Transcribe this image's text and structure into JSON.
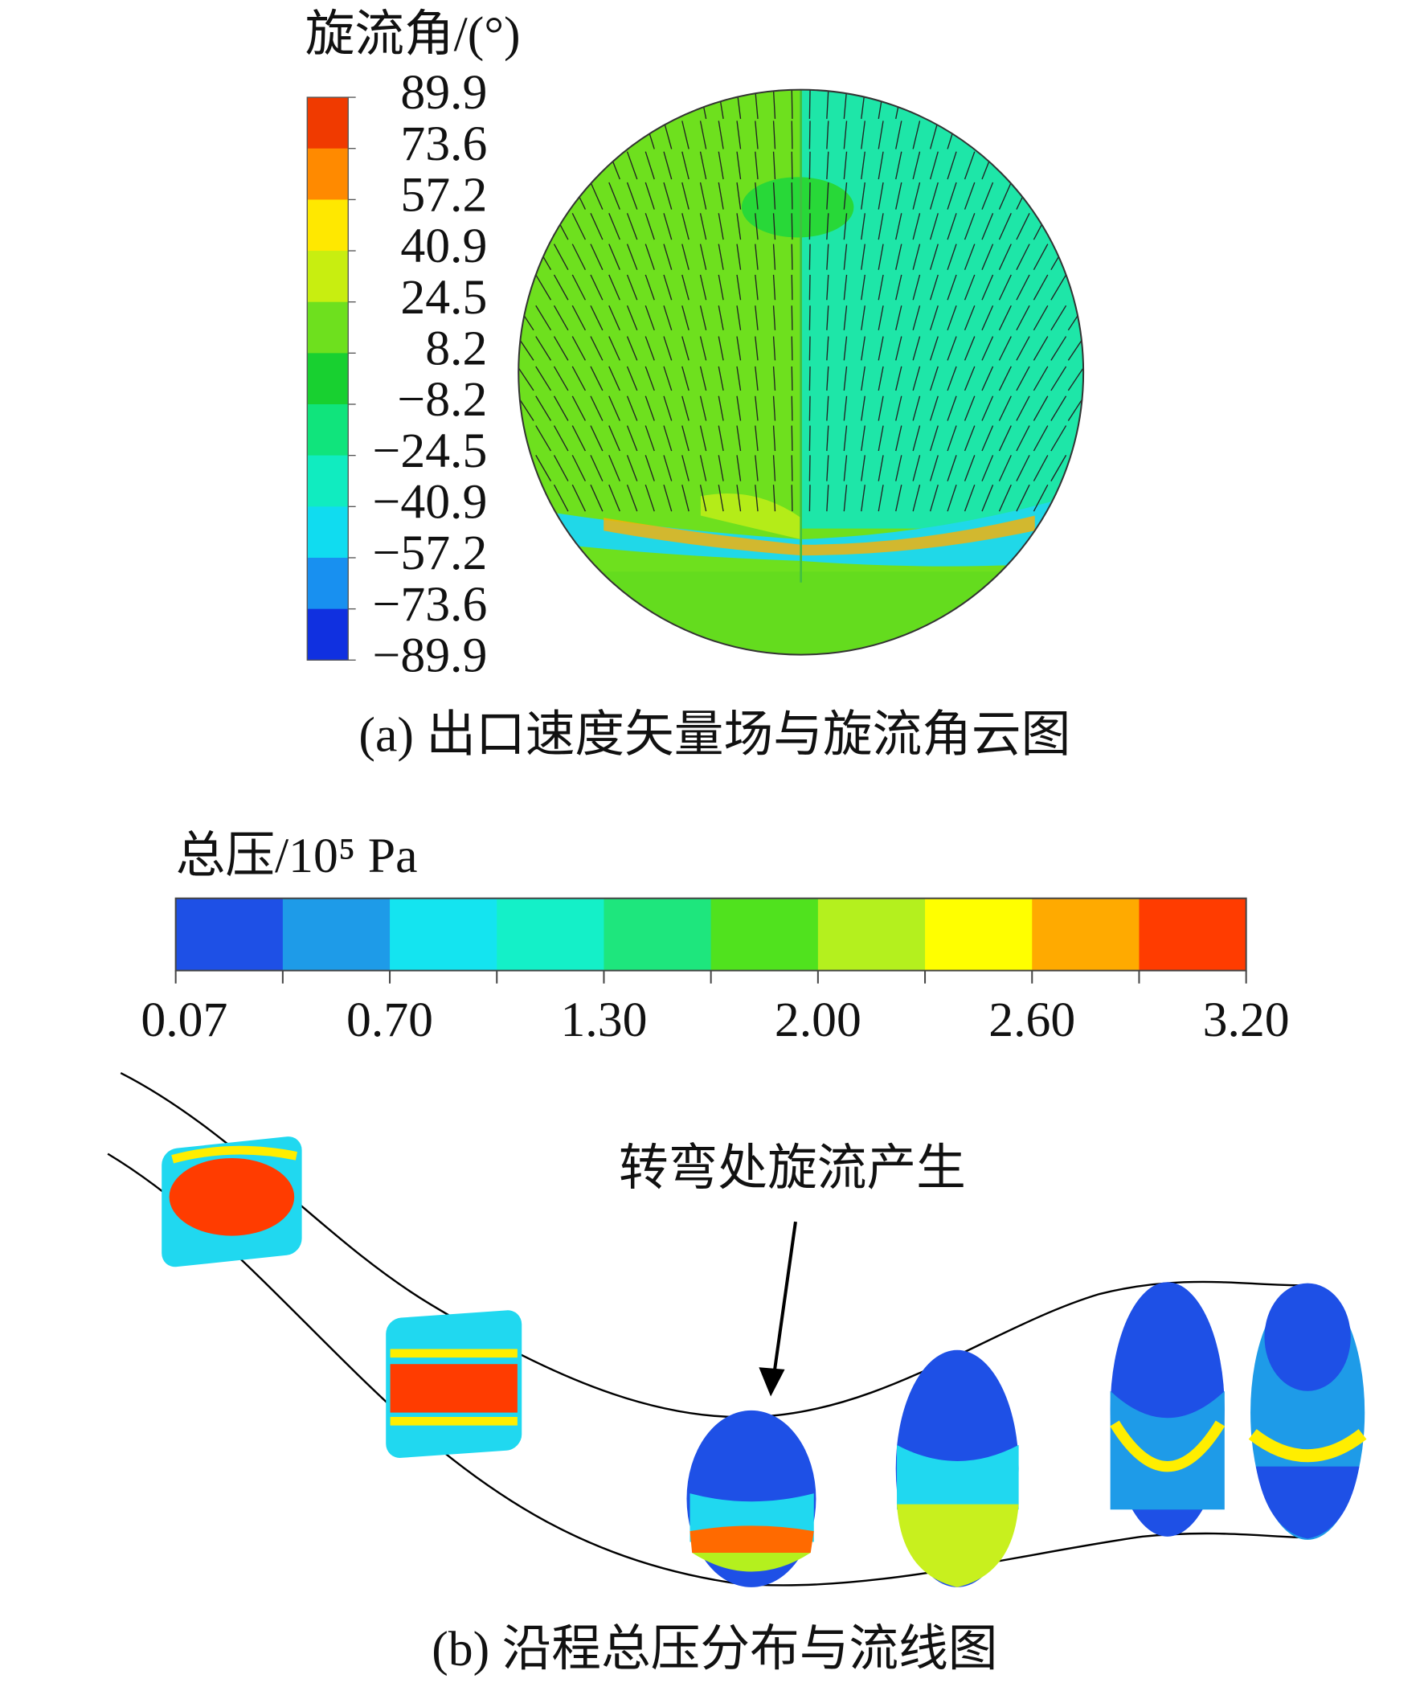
{
  "panel_a": {
    "legend_title": "旋流角/(°)",
    "legend_ticks": [
      "89.9",
      "73.6",
      "57.2",
      "40.9",
      "24.5",
      "8.2",
      "−8.2",
      "−24.5",
      "−40.9",
      "−57.2",
      "−73.6",
      "−89.9"
    ],
    "legend_colors": [
      "#f03a00",
      "#ff8a00",
      "#ffe800",
      "#c8ee10",
      "#6ee01e",
      "#18d030",
      "#10e47c",
      "#10ecc0",
      "#10dcf0",
      "#1890f0",
      "#1030e0"
    ],
    "caption": "(a) 出口速度矢量场与旋流角云图"
  },
  "panel_b": {
    "legend_title": "总压/10⁵ Pa",
    "legend_ticks": [
      "0.07",
      "0.70",
      "1.30",
      "2.00",
      "2.60",
      "3.20"
    ],
    "legend_colors": [
      "#1e50e6",
      "#1e9be8",
      "#14e4f0",
      "#14f0c8",
      "#1ee67d",
      "#50e21e",
      "#b4f01e",
      "#ffff00",
      "#ffaa00",
      "#ff3c00"
    ],
    "annotation": "转弯处旋流产生",
    "caption": "(b) 沿程总压分布与流线图"
  }
}
